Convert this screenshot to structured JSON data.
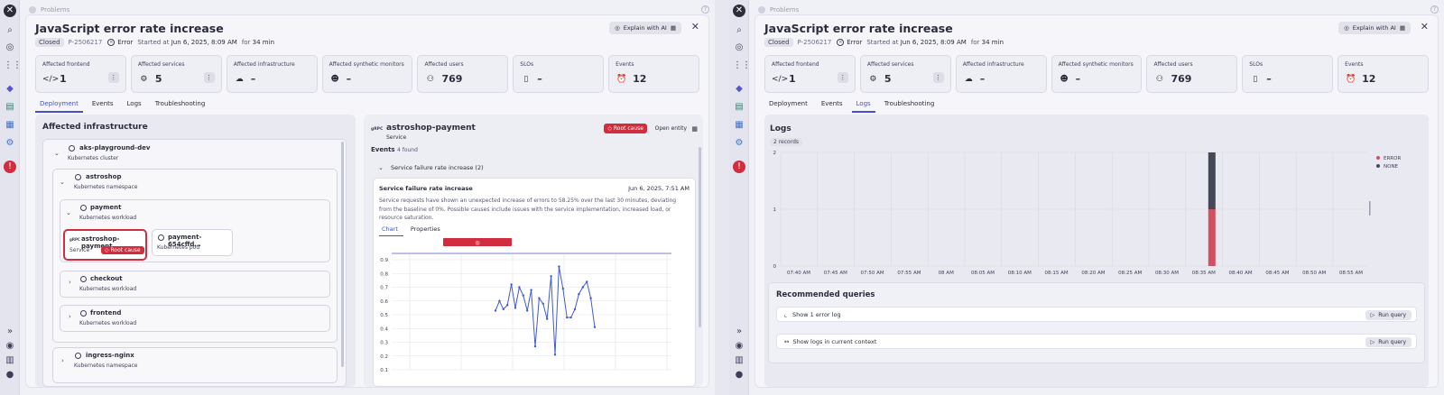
{
  "breadcrumb": "Problems",
  "problem": {
    "title": "JavaScript error rate increase",
    "status": "Closed",
    "id": "P-2506217",
    "severity": "Error",
    "started_prefix": "Started at",
    "started_at": "Jun 6, 2025, 8:09 AM",
    "for_word": "for",
    "duration": "34 min"
  },
  "explain_ai_label": "Explain with AI",
  "tiles": [
    {
      "label": "Affected frontend",
      "value": "1",
      "icon": "code-icon"
    },
    {
      "label": "Affected services",
      "value": "5",
      "icon": "services-icon"
    },
    {
      "label": "Affected infrastructure",
      "value": "–",
      "icon": "cloud-icon"
    },
    {
      "label": "Affected synthetic monitors",
      "value": "–",
      "icon": "robot-icon"
    },
    {
      "label": "Affected users",
      "value": "769",
      "icon": "users-icon"
    },
    {
      "label": "SLOs",
      "value": "–",
      "icon": "slo-icon"
    },
    {
      "label": "Events",
      "value": "12",
      "icon": "alarm-icon"
    }
  ],
  "tabs": [
    "Deployment",
    "Events",
    "Logs",
    "Troubleshooting"
  ],
  "left_active_tab": "Deployment",
  "right_active_tab": "Logs",
  "infra": {
    "title": "Affected infrastructure",
    "cluster": {
      "name": "aks-playground-dev",
      "type": "Kubernetes cluster"
    },
    "namespace": {
      "name": "astroshop",
      "type": "Kubernetes namespace"
    },
    "workload_payment": {
      "name": "payment",
      "type": "Kubernetes workload"
    },
    "service": {
      "name": "astroshop-payment",
      "type": "Service",
      "badge": "Root cause"
    },
    "pod": {
      "name": "payment-654cffd…",
      "type": "Kubernetes pod"
    },
    "workload_checkout": {
      "name": "checkout",
      "type": "Kubernetes workload"
    },
    "workload_frontend": {
      "name": "frontend",
      "type": "Kubernetes workload"
    },
    "namespace2": {
      "name": "ingress-nginx",
      "type": "Kubernetes namespace"
    }
  },
  "detail": {
    "entity": "astroshop-payment",
    "entity_type": "Service",
    "root_cause": "Root cause",
    "open_entity": "Open entity",
    "events_label": "Events",
    "events_found": "4 found",
    "group_title": "Service failure rate increase (2)",
    "event_title": "Service failure rate increase",
    "event_time": "Jun 6, 2025, 7:51 AM",
    "event_desc": "Service requests have shown an unexpected increase of errors to 58.25% over the last 30 minutes, deviating from the baseline of 0%. Possible causes include issues with the service implementation, increased load, or resource saturation.",
    "subtabs": [
      "Chart",
      "Properties"
    ]
  },
  "logs": {
    "title": "Logs",
    "records": "2 records",
    "legend": [
      "ERROR",
      "NONE"
    ],
    "colors": {
      "error": "#d25060",
      "none": "#454856"
    }
  },
  "recommended": {
    "title": "Recommended queries",
    "queries": [
      {
        "label": "Show 1 error log",
        "button": "Run query"
      },
      {
        "label": "Show logs in current context",
        "button": "Run query"
      }
    ]
  },
  "chart_data": [
    {
      "type": "line",
      "title": "",
      "ylim": [
        0.1,
        0.9
      ],
      "yticks": [
        "0.9",
        "0.8",
        "0.7",
        "0.6",
        "0.5",
        "0.4",
        "0.3",
        "0.2",
        "0.1"
      ],
      "series": [
        {
          "values": [
            0.53,
            0.6,
            0.54,
            0.57,
            0.72,
            0.55,
            0.7,
            0.64,
            0.53,
            0.68,
            0.27,
            0.62,
            0.58,
            0.47,
            0.78,
            0.21,
            0.85,
            0.69,
            0.48,
            0.48,
            0.54,
            0.65,
            0.7,
            0.74,
            0.62,
            0.41
          ]
        }
      ],
      "grid": true
    },
    {
      "type": "bar",
      "stacked": true,
      "categories": [
        "07:40 AM",
        "07:45 AM",
        "07:50 AM",
        "07:55 AM",
        "08 AM",
        "08:05 AM",
        "08:10 AM",
        "08:15 AM",
        "08:20 AM",
        "08:25 AM",
        "08:30 AM",
        "08:35 AM",
        "08:40 AM",
        "08:45 AM",
        "08:50 AM",
        "08:55 AM"
      ],
      "series": [
        {
          "name": "ERROR",
          "values": [
            0,
            0,
            0,
            0,
            0,
            0,
            0,
            0,
            0,
            0,
            0,
            1,
            0,
            0,
            0,
            0
          ]
        },
        {
          "name": "NONE",
          "values": [
            0,
            0,
            0,
            0,
            0,
            0,
            0,
            0,
            0,
            0,
            0,
            1,
            0,
            0,
            0,
            0
          ]
        }
      ],
      "ylim": [
        0,
        2
      ],
      "yticks": [
        "2",
        "1",
        "0"
      ],
      "legend": "top-right",
      "grid": true
    }
  ]
}
